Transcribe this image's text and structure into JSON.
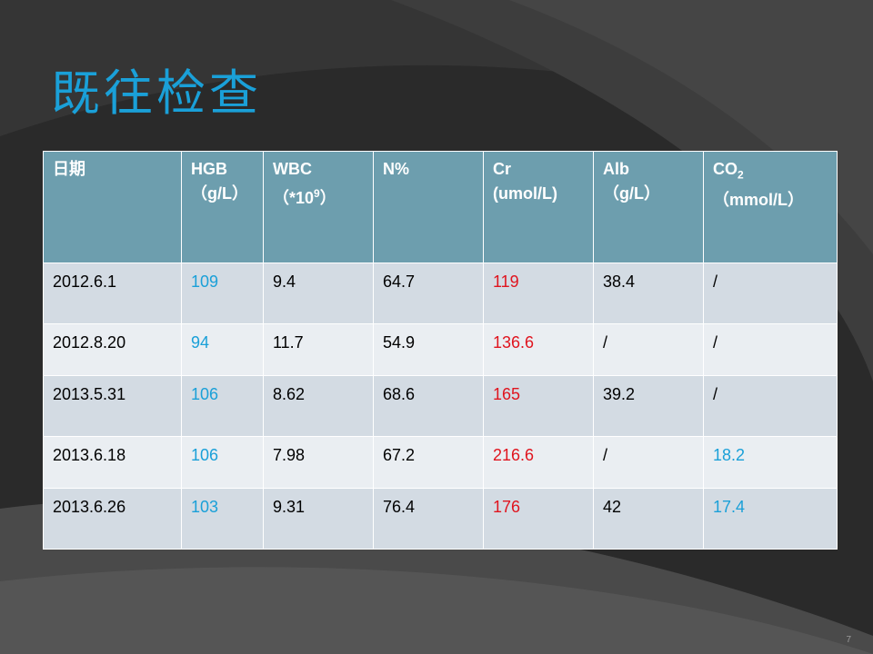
{
  "slide": {
    "title": "既往检查",
    "page_number": "7"
  },
  "table": {
    "headers": [
      {
        "line1": "日期",
        "line2": ""
      },
      {
        "line1": "HGB",
        "line2": "（g/L）"
      },
      {
        "line1": "WBC",
        "line2_prefix": "（*10",
        "line2_sup": "9",
        "line2_suffix": "）"
      },
      {
        "line1": "N%",
        "line2": ""
      },
      {
        "line1": "Cr",
        "line2": "(umol/L)"
      },
      {
        "line1": "Alb",
        "line2": "（g/L）"
      },
      {
        "line1_prefix": "CO",
        "line1_sub": "2",
        "line2": "（mmol/L）"
      }
    ],
    "rows": [
      [
        "2012.6.1",
        "109",
        "9.4",
        "64.7",
        "119",
        "38.4",
        "/"
      ],
      [
        "2012.8.20",
        "94",
        "11.7",
        "54.9",
        "136.6",
        "/",
        "/"
      ],
      [
        "2013.5.31",
        "106",
        "8.62",
        "68.6",
        "165",
        "39.2",
        "/"
      ],
      [
        "2013.6.18",
        "106",
        "7.98",
        "67.2",
        "216.6",
        "/",
        "18.2"
      ],
      [
        "2013.6.26",
        "103",
        "9.31",
        "76.4",
        "176",
        "42",
        "17.4"
      ]
    ]
  },
  "colors": {
    "title": "#1aa0d8",
    "header_bg": "#6d9eae",
    "row_odd_bg": "#d3dbe3",
    "row_even_bg": "#eaeef2",
    "highlight_blue": "#1aa0d8",
    "highlight_red": "#e0141e"
  }
}
